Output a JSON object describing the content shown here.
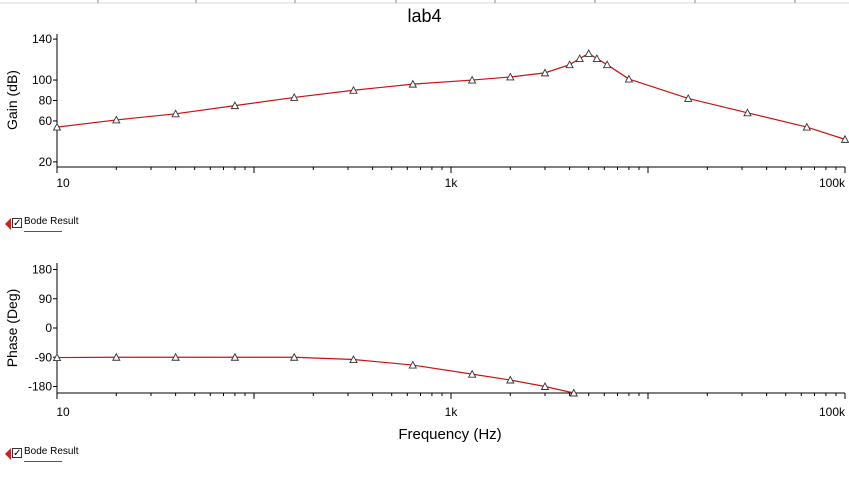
{
  "title": "lab4",
  "colors": {
    "trace": "#cc1111",
    "axis": "#000000",
    "legend_marker": "#d02020"
  },
  "legend": {
    "label": "Bode Result",
    "checked": true
  },
  "chart_data": [
    {
      "type": "line",
      "title": "lab4",
      "xlabel": "",
      "ylabel": "Gain (dB)",
      "xscale": "log",
      "xlim": [
        10,
        100000
      ],
      "ylim": [
        15,
        145
      ],
      "xticks": [
        10,
        1000,
        100000
      ],
      "xtick_labels": [
        "10",
        "1k",
        "100k"
      ],
      "yticks": [
        20,
        60,
        80,
        100,
        140
      ],
      "ytick_labels": [
        "20",
        "60",
        "80",
        "100",
        "140"
      ],
      "grid": false,
      "series": [
        {
          "name": "Bode Result",
          "x": [
            10,
            20,
            40,
            80,
            160,
            320,
            640,
            1280,
            2000,
            3000,
            4000,
            4500,
            5000,
            5500,
            6200,
            8000,
            16000,
            32000,
            64000,
            100000
          ],
          "y": [
            54,
            61,
            67,
            75,
            83,
            90,
            96,
            100,
            103,
            107,
            115,
            121,
            126,
            121,
            115,
            101,
            82,
            68,
            54,
            42
          ]
        }
      ]
    },
    {
      "type": "line",
      "xlabel": "Frequency (Hz)",
      "ylabel": "Phase (Deg)",
      "xscale": "log",
      "xlim": [
        10,
        100000
      ],
      "ylim": [
        -200,
        200
      ],
      "xticks": [
        10,
        1000,
        100000
      ],
      "xtick_labels": [
        "10",
        "1k",
        "100k"
      ],
      "yticks": [
        180,
        90,
        0,
        -90,
        -180
      ],
      "ytick_labels": [
        "180",
        "90",
        "0",
        "-90",
        "-180"
      ],
      "grid": false,
      "series": [
        {
          "name": "Bode Result",
          "x": [
            10,
            20,
            40,
            80,
            160,
            320,
            640,
            1280,
            2000,
            3000,
            4200
          ],
          "y": [
            -91,
            -90,
            -90,
            -90,
            -90,
            -97,
            -114,
            -142,
            -160,
            -180,
            -200
          ]
        }
      ]
    }
  ]
}
